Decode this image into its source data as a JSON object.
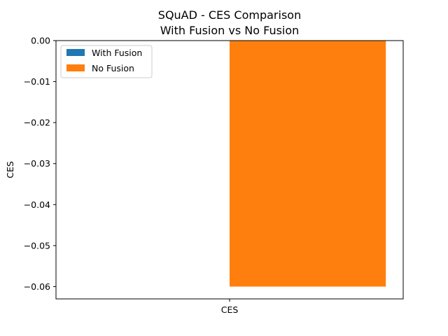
{
  "chart_data": {
    "type": "bar",
    "title": "SQuAD - CES Comparison",
    "subtitle": "With Fusion vs No Fusion",
    "xlabel": "",
    "ylabel": "CES",
    "categories": [
      "CES"
    ],
    "series": [
      {
        "name": "With Fusion",
        "values": [
          0.0
        ],
        "color": "#1f77b4"
      },
      {
        "name": "No Fusion",
        "values": [
          -0.06
        ],
        "color": "#ff7f0e"
      }
    ],
    "ylim": [
      -0.063,
      0.0
    ],
    "yticks": [
      0.0,
      -0.01,
      -0.02,
      -0.03,
      -0.04,
      -0.05,
      -0.06
    ],
    "ytick_labels": [
      "0.00",
      "−0.01",
      "−0.02",
      "−0.03",
      "−0.04",
      "−0.05",
      "−0.06"
    ],
    "grid": false,
    "legend_position": "upper-left"
  }
}
